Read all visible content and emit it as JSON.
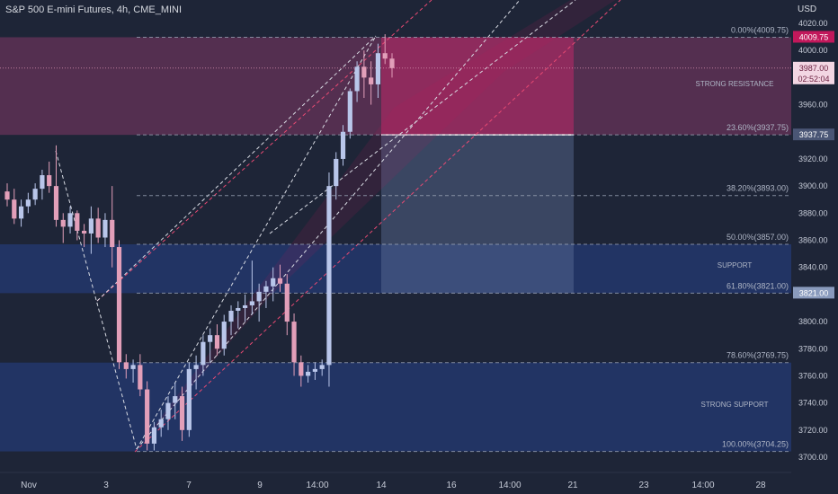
{
  "header": {
    "title": "S&P 500 E-mini Futures, 4h, CME_MINI"
  },
  "chart_data": {
    "type": "candlestick",
    "currency_label": "USD",
    "y_range": [
      3692,
      4030
    ],
    "y_ticks": [
      3700,
      3720,
      3740,
      3760,
      3780,
      3800,
      3820,
      3840,
      3860,
      3880,
      3900,
      3920,
      3940,
      3960,
      3980,
      4000,
      4020
    ],
    "y_tick_labels": [
      "3700.00",
      "3720.00",
      "3740.00",
      "3760.00",
      "3780.00",
      "3800.00",
      "3820.00",
      "3840.00",
      "3860.00",
      "3880.00",
      "3900.00",
      "3920.00",
      "3940.00",
      "3960.00",
      "3980.00",
      "4000.00",
      "4020.00"
    ],
    "x_tick_labels": [
      "Nov",
      "3",
      "7",
      "9",
      "14:00",
      "14",
      "16",
      "14:00",
      "21",
      "23",
      "14:00",
      "28"
    ],
    "fib_levels": [
      {
        "label": "0.00%(4009.75)",
        "value": 4009.75
      },
      {
        "label": "23.60%(3937.75)",
        "value": 3937.75
      },
      {
        "label": "38.20%(3893.00)",
        "value": 3893.0
      },
      {
        "label": "50.00%(3857.00)",
        "value": 3857.0
      },
      {
        "label": "61.80%(3821.00)",
        "value": 3821.0
      },
      {
        "label": "78.60%(3769.75)",
        "value": 3769.75
      },
      {
        "label": "100.00%(3704.25)",
        "value": 3704.25
      }
    ],
    "zones": [
      {
        "label": "STRONG RESISTANCE",
        "from": 3937.75,
        "to": 4009.75,
        "color": "#8a3a6a"
      },
      {
        "label": "SUPPORT",
        "from": 3821.0,
        "to": 3857.0,
        "color": "#27418a"
      },
      {
        "label": "STRONG SUPPORT",
        "from": 3704.25,
        "to": 3769.75,
        "color": "#27418a"
      }
    ],
    "position": {
      "target": 4009.75,
      "entry": 3937.75,
      "stop": 3821.0
    },
    "price_badges": [
      {
        "label": "4009.75",
        "value": 4009.75,
        "color": "#c2185b"
      },
      {
        "label": "3987.00",
        "value": 3987.0,
        "color": "#f3d6e3"
      },
      {
        "label": "02:52:04",
        "value": 3980.0,
        "color": "#f3d6e3"
      },
      {
        "label": "3937.75",
        "value": 3937.75,
        "color": "#4a5675"
      },
      {
        "label": "3821.00",
        "value": 3821.0,
        "color": "#8a9bbd"
      }
    ],
    "candles": [
      [
        3896,
        3902,
        3885,
        3890
      ],
      [
        3890,
        3898,
        3872,
        3876
      ],
      [
        3876,
        3890,
        3870,
        3885
      ],
      [
        3885,
        3895,
        3880,
        3890
      ],
      [
        3890,
        3902,
        3886,
        3898
      ],
      [
        3898,
        3912,
        3890,
        3908
      ],
      [
        3908,
        3918,
        3895,
        3900
      ],
      [
        3900,
        3930,
        3870,
        3875
      ],
      [
        3875,
        3880,
        3858,
        3870
      ],
      [
        3870,
        3885,
        3865,
        3880
      ],
      [
        3880,
        3882,
        3860,
        3867
      ],
      [
        3867,
        3872,
        3855,
        3865
      ],
      [
        3865,
        3885,
        3850,
        3876
      ],
      [
        3876,
        3884,
        3858,
        3862
      ],
      [
        3862,
        3880,
        3855,
        3875
      ],
      [
        3875,
        3900,
        3840,
        3855
      ],
      [
        3855,
        3860,
        3765,
        3770
      ],
      [
        3770,
        3776,
        3758,
        3765
      ],
      [
        3765,
        3772,
        3755,
        3768
      ],
      [
        3768,
        3776,
        3745,
        3750
      ],
      [
        3750,
        3756,
        3705,
        3710
      ],
      [
        3710,
        3726,
        3705,
        3722
      ],
      [
        3722,
        3735,
        3715,
        3728
      ],
      [
        3728,
        3745,
        3720,
        3740
      ],
      [
        3740,
        3755,
        3728,
        3745
      ],
      [
        3745,
        3752,
        3712,
        3720
      ],
      [
        3720,
        3770,
        3715,
        3765
      ],
      [
        3765,
        3775,
        3750,
        3768
      ],
      [
        3768,
        3790,
        3760,
        3785
      ],
      [
        3785,
        3795,
        3770,
        3790
      ],
      [
        3790,
        3798,
        3775,
        3780
      ],
      [
        3780,
        3805,
        3775,
        3800
      ],
      [
        3800,
        3812,
        3790,
        3808
      ],
      [
        3808,
        3815,
        3795,
        3810
      ],
      [
        3810,
        3820,
        3800,
        3812
      ],
      [
        3812,
        3845,
        3805,
        3815
      ],
      [
        3815,
        3828,
        3800,
        3822
      ],
      [
        3822,
        3830,
        3810,
        3826
      ],
      [
        3826,
        3840,
        3815,
        3832
      ],
      [
        3832,
        3842,
        3822,
        3828
      ],
      [
        3828,
        3835,
        3790,
        3800
      ],
      [
        3800,
        3806,
        3760,
        3770
      ],
      [
        3770,
        3775,
        3752,
        3760
      ],
      [
        3760,
        3768,
        3755,
        3763
      ],
      [
        3763,
        3770,
        3757,
        3765
      ],
      [
        3765,
        3772,
        3760,
        3768
      ],
      [
        3768,
        3910,
        3752,
        3900
      ],
      [
        3900,
        3925,
        3890,
        3920
      ],
      [
        3920,
        3945,
        3915,
        3940
      ],
      [
        3940,
        3972,
        3935,
        3970
      ],
      [
        3970,
        3992,
        3962,
        3988
      ],
      [
        3988,
        4000,
        3965,
        3980
      ],
      [
        3980,
        3992,
        3960,
        3975
      ],
      [
        3975,
        4005,
        3965,
        3998
      ],
      [
        3998,
        4012,
        3990,
        3994
      ],
      [
        3994,
        3998,
        3980,
        3987
      ]
    ]
  }
}
